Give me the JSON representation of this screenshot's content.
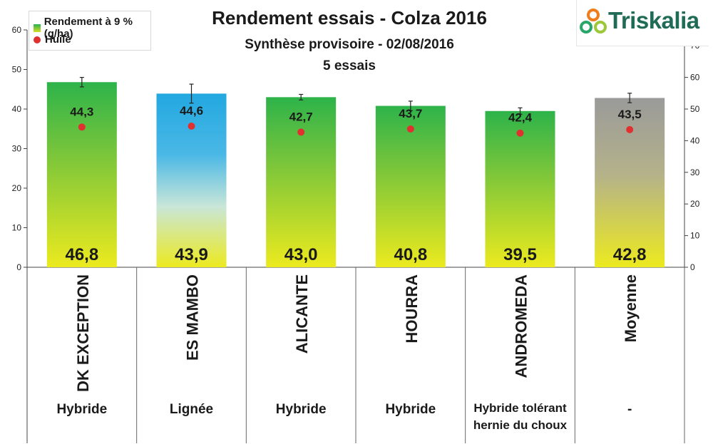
{
  "chart_data": {
    "type": "bar",
    "title": "Rendement essais - Colza 2016",
    "subtitle": "Synthèse provisoire - 02/08/2016",
    "subtitle2": "5 essais",
    "categories": [
      "DK EXCEPTION",
      "ES MAMBO",
      "ALICANTE",
      "HOURRA",
      "ANDROMEDA",
      "Moyenne"
    ],
    "types": [
      "Hybride",
      "Lignée",
      "Hybride",
      "Hybride",
      "Hybride tolérant\nhernie du choux",
      "-"
    ],
    "series": [
      {
        "name": "Rendement à 9 % (q/ha)",
        "axis": "left",
        "values": [
          46.8,
          43.9,
          43.0,
          40.8,
          39.5,
          42.8
        ],
        "labels": [
          "46,8",
          "43,9",
          "43,0",
          "40,8",
          "39,5",
          "42,8"
        ],
        "error": [
          1.2,
          2.4,
          0.7,
          1.2,
          0.8,
          1.2
        ]
      },
      {
        "name": "Huile",
        "axis": "right",
        "values": [
          44.3,
          44.6,
          42.7,
          43.7,
          42.4,
          43.5
        ],
        "labels": [
          "44,3",
          "44,6",
          "42,7",
          "43,7",
          "42,4",
          "43,5"
        ]
      }
    ],
    "ylim": [
      0,
      60
    ],
    "y_ticks": [
      0,
      10,
      20,
      30,
      40,
      50,
      60
    ],
    "y2lim": [
      0,
      75
    ],
    "y2_ticks": [
      0,
      10,
      20,
      30,
      40,
      50,
      60,
      70
    ],
    "legend_position": "top-left",
    "grid": false,
    "colors": {
      "bar_top": "#2db34a",
      "bar_bottom": "#eaea20",
      "bar_special_top": "#22a8e0",
      "bar_average_top": "#9a9a9a",
      "dot": "#e03030"
    }
  },
  "logo": {
    "text": "Triskalia"
  }
}
